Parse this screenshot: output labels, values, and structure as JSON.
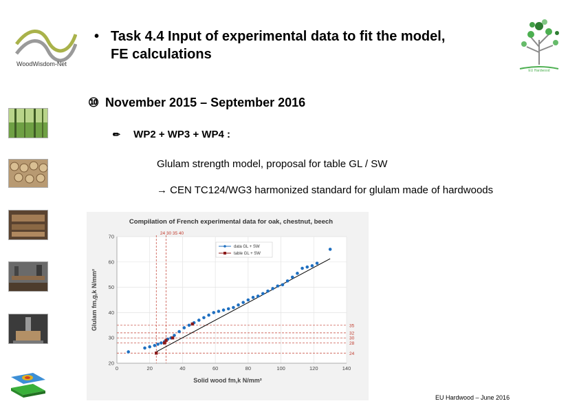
{
  "header": {
    "left_logo_text": "WoodWisdom-Net",
    "title_bullet": "•",
    "title_line1": "Task 4.4 Input of experimental data to fit the model,",
    "title_line2": "FE calculations",
    "right_logo_text": "EU Hardwood"
  },
  "schedule": {
    "symbol": "⑩",
    "dates": "November 2015 – September 2016"
  },
  "work": {
    "symbol": "✏",
    "packages": "WP2 + WP3 + WP4 :",
    "model": "Glulam strength model, proposal for table GL / SW",
    "standard_arrow": "→",
    "standard": "CEN TC124/WG3 harmonized standard for glulam made of hardwoods"
  },
  "footer": {
    "text": "EU Hardwood – June 2016"
  },
  "colors": {
    "data_series": "#1f6fc0",
    "table_series": "#8b1a1a",
    "reference": "#c0392b"
  },
  "chart_data": {
    "type": "scatter",
    "title": "Compilation of French experimental data for oak, chestnut, beech",
    "xlabel": "Solid wood  fm,k  N/mm²",
    "ylabel": "Glulam  fm,g,k  N/mm²",
    "xlim": [
      0,
      140
    ],
    "ylim": [
      20,
      70
    ],
    "xticks": [
      0,
      20,
      40,
      60,
      80,
      100,
      120,
      140
    ],
    "yticks": [
      20,
      30,
      40,
      50,
      60,
      70
    ],
    "top_reference_labels": "24  30  35  40",
    "reference_lines_y": [
      24,
      28,
      30,
      32,
      35
    ],
    "reference_labels_y": [
      "24",
      "28",
      "30",
      "32",
      "35"
    ],
    "reference_lines_x": [
      24,
      30
    ],
    "legend": [
      "data GL + SW",
      "table GL + SW"
    ],
    "fit_line": {
      "x": [
        24,
        130
      ],
      "y": [
        24.5,
        61.3
      ]
    },
    "series": [
      {
        "name": "data GL + SW",
        "x": [
          7,
          17,
          20,
          23,
          25,
          27,
          29,
          31,
          33,
          35,
          38,
          41,
          44,
          47,
          50,
          53,
          56,
          59,
          62,
          65,
          68,
          71,
          74,
          77,
          80,
          83,
          86,
          89,
          92,
          95,
          98,
          101,
          104,
          107,
          110,
          113,
          116,
          119,
          122,
          130
        ],
        "y": [
          24.5,
          26,
          26.5,
          27,
          27.5,
          28,
          28.5,
          29.5,
          30,
          31,
          32.5,
          34,
          35,
          36,
          37,
          38,
          39,
          40,
          40.5,
          41,
          41.5,
          42,
          43,
          44,
          45,
          46,
          46.5,
          47.5,
          48.5,
          49.5,
          50.5,
          51,
          52.5,
          54,
          55.5,
          57.5,
          58,
          58.5,
          59.5,
          65
        ]
      },
      {
        "name": "table GL + SW",
        "x": [
          24,
          29,
          30,
          34,
          46
        ],
        "y": [
          24,
          28,
          29,
          30,
          35.5
        ]
      }
    ]
  }
}
